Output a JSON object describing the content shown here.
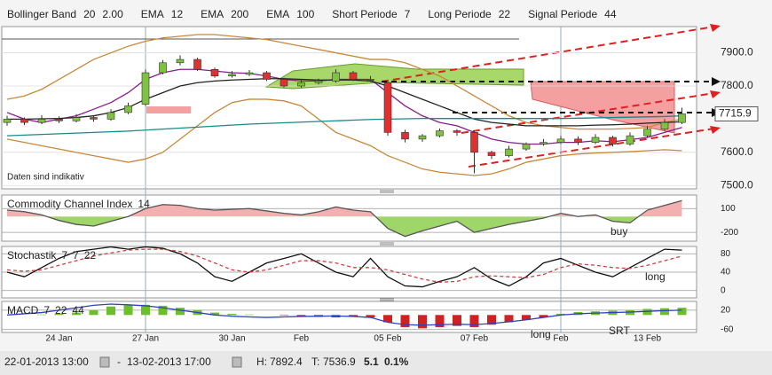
{
  "header": {
    "items": [
      {
        "name": "Bollinger Band",
        "params": [
          20,
          "2.00"
        ],
        "color": "#c86a10"
      },
      {
        "name": "EMA",
        "params": [
          12
        ],
        "color": "#8a1c8a"
      },
      {
        "name": "EMA",
        "params": [
          200
        ],
        "color": "#178a8a"
      },
      {
        "name": "EMA",
        "params": [
          100
        ],
        "color": "#a0522d"
      },
      {
        "name": "Short Periode",
        "params": [
          7
        ],
        "color": "#222222"
      },
      {
        "name": "Long Periode",
        "params": [
          22
        ],
        "color": "#222222"
      },
      {
        "name": "Signal Periode",
        "params": [
          44
        ],
        "color": "#222222"
      }
    ]
  },
  "chart_data": [
    {
      "type": "candlestick",
      "categories": [
        null,
        null,
        null,
        "24 Jan",
        null,
        null,
        null,
        null,
        "27 Jan",
        null,
        null,
        null,
        null,
        "30 Jan",
        null,
        null,
        null,
        "Feb",
        null,
        null,
        null,
        null,
        "05 Feb",
        null,
        null,
        null,
        null,
        "07 Feb",
        null,
        null,
        null,
        null,
        "Feb",
        null,
        null,
        null,
        null,
        "13 Feb",
        null,
        null
      ],
      "open": [
        7690,
        7700,
        7690,
        7700,
        7695,
        7705,
        7700,
        7720,
        7745,
        7840,
        7870,
        7880,
        7850,
        7830,
        7835,
        7840,
        7820,
        7800,
        7810,
        7815,
        7840,
        7820,
        7810,
        7660,
        7640,
        7650,
        7665,
        7660,
        7600,
        7590,
        7610,
        7625,
        7630,
        7640,
        7630,
        7645,
        7625,
        7650,
        7670,
        7690
      ],
      "high": [
        7710,
        7705,
        7712,
        7708,
        7715,
        7712,
        7730,
        7750,
        7850,
        7878,
        7892.4,
        7885,
        7855,
        7845,
        7848,
        7845,
        7825,
        7818,
        7822,
        7850,
        7845,
        7830,
        7815,
        7668,
        7655,
        7672,
        7670,
        7665,
        7605,
        7620,
        7630,
        7640,
        7650,
        7648,
        7655,
        7650,
        7660,
        7680,
        7700,
        7735
      ],
      "low": [
        7680,
        7682,
        7685,
        7688,
        7690,
        7692,
        7695,
        7715,
        7740,
        7835,
        7862,
        7845,
        7825,
        7825,
        7830,
        7815,
        7795,
        7795,
        7805,
        7810,
        7815,
        7812,
        7650,
        7630,
        7632,
        7645,
        7650,
        7536.9,
        7580,
        7585,
        7605,
        7620,
        7625,
        7622,
        7625,
        7618,
        7620,
        7645,
        7665,
        7685
      ],
      "close": [
        7700,
        7690,
        7700,
        7695,
        7705,
        7700,
        7720,
        7740,
        7840,
        7870,
        7880,
        7850,
        7830,
        7835,
        7840,
        7820,
        7800,
        7810,
        7815,
        7840,
        7820,
        7820,
        7660,
        7640,
        7650,
        7665,
        7660,
        7600,
        7590,
        7610,
        7625,
        7630,
        7640,
        7630,
        7645,
        7625,
        7650,
        7670,
        7690,
        7715.9
      ],
      "up_color": "#7fc241",
      "down_color": "#e03030",
      "series": [
        {
          "color": "#c8883a",
          "values": [
            7760,
            7770,
            7790,
            7820,
            7850,
            7880,
            7900,
            7920,
            7935,
            7945,
            7950,
            7955,
            7955,
            7950,
            7945,
            7940,
            7930,
            7920,
            7910,
            7900,
            7890,
            7880,
            7880,
            7870,
            7850,
            7830,
            7800,
            7770,
            7740,
            7710,
            7690,
            7680,
            7675,
            7670,
            7670,
            7670,
            7672,
            7675,
            7690,
            7700
          ]
        },
        {
          "color": "#c8883a",
          "values": [
            7640,
            7630,
            7620,
            7610,
            7600,
            7590,
            7580,
            7570,
            7580,
            7600,
            7640,
            7680,
            7720,
            7750,
            7760,
            7760,
            7755,
            7740,
            7700,
            7660,
            7640,
            7620,
            7590,
            7570,
            7550,
            7540,
            7535,
            7530,
            7535,
            7550,
            7570,
            7580,
            7590,
            7595,
            7598,
            7600,
            7602,
            7605,
            7608,
            7605
          ]
        },
        {
          "color": "#8a1c8a",
          "values": [
            7720,
            7700,
            7690,
            7700,
            7710,
            7730,
            7750,
            7780,
            7820,
            7840,
            7850,
            7850,
            7845,
            7840,
            7838,
            7830,
            7820,
            7815,
            7815,
            7820,
            7820,
            7820,
            7780,
            7740,
            7710,
            7690,
            7680,
            7660,
            7640,
            7630,
            7625,
            7625,
            7630,
            7630,
            7635,
            7632,
            7638,
            7645,
            7660,
            7675
          ]
        },
        {
          "color": "#222222",
          "values": [
            7700,
            7700,
            7701,
            7702,
            7705,
            7710,
            7720,
            7735,
            7760,
            7780,
            7800,
            7810,
            7815,
            7818,
            7820,
            7822,
            7822,
            7820,
            7818,
            7818,
            7818,
            7815,
            7800,
            7780,
            7760,
            7740,
            7720,
            7700,
            7690,
            7685,
            7680,
            7680,
            7680,
            7680,
            7682,
            7683,
            7685,
            7688,
            7690,
            7692
          ]
        },
        {
          "color": "#178a8a",
          "values": [
            7650,
            7652,
            7654,
            7656,
            7658,
            7660,
            7662,
            7664,
            7667,
            7670,
            7673,
            7676,
            7679,
            7682,
            7685,
            7687,
            7689,
            7691,
            7693,
            7695,
            7697,
            7699,
            7700,
            7701,
            7702,
            7702,
            7702,
            7702,
            7702,
            7702,
            7702,
            7702,
            7702,
            7703,
            7704,
            7705,
            7706,
            7707,
            7708,
            7710
          ]
        }
      ],
      "ylim": [
        7490,
        7979
      ],
      "yticks": [
        {
          "value": 7500,
          "label": "7500.0"
        },
        {
          "value": 7600,
          "label": "7600.0"
        },
        {
          "value": 7800,
          "label": "7800.0"
        },
        {
          "value": 7900,
          "label": "7900.0"
        }
      ],
      "annotations": [
        "Daten sind indikativ"
      ]
    },
    {
      "type": "line",
      "title": "Commodity Channel Index",
      "params": [
        14
      ],
      "series": [
        {
          "color": "#555555",
          "values": [
            80,
            60,
            20,
            -50,
            -100,
            -120,
            -60,
            0,
            100,
            150,
            140,
            100,
            80,
            90,
            100,
            70,
            40,
            20,
            60,
            120,
            80,
            60,
            -150,
            -250,
            -180,
            -120,
            -60,
            -200,
            -150,
            -100,
            -60,
            -20,
            40,
            0,
            20,
            -60,
            -80,
            80,
            140,
            200
          ]
        }
      ],
      "fill": true,
      "ylim": [
        -310,
        270
      ],
      "yticks": [
        -200,
        100
      ],
      "annotations": [
        "buy"
      ]
    },
    {
      "type": "line",
      "title": "Stochastik",
      "params": [
        7,
        7,
        22
      ],
      "series": [
        {
          "color": "#111111",
          "values": [
            40,
            30,
            50,
            70,
            85,
            90,
            95,
            90,
            95,
            92,
            80,
            60,
            30,
            20,
            40,
            60,
            70,
            80,
            60,
            40,
            30,
            70,
            30,
            10,
            8,
            20,
            30,
            50,
            25,
            10,
            30,
            60,
            70,
            55,
            40,
            30,
            50,
            70,
            90,
            88
          ]
        },
        {
          "color": "#d04040",
          "dash": true,
          "values": [
            45,
            42,
            45,
            55,
            65,
            75,
            82,
            88,
            90,
            90,
            85,
            75,
            60,
            45,
            40,
            45,
            55,
            65,
            65,
            60,
            50,
            50,
            45,
            35,
            25,
            18,
            20,
            30,
            32,
            30,
            28,
            35,
            50,
            58,
            55,
            50,
            48,
            55,
            65,
            75
          ]
        }
      ],
      "ylim": [
        -16,
        96
      ],
      "yticks": [
        0,
        40,
        80
      ],
      "annotations": [
        "long"
      ]
    },
    {
      "type": "macd",
      "title": "MACD",
      "params": [
        7,
        22,
        44
      ],
      "values": [
        0,
        0,
        2,
        5,
        10,
        20,
        35,
        40,
        42,
        38,
        30,
        20,
        10,
        5,
        2,
        0,
        -2,
        -5,
        -8,
        -10,
        -8,
        -10,
        -30,
        -50,
        -55,
        -50,
        -45,
        -50,
        -40,
        -30,
        -20,
        -10,
        5,
        12,
        15,
        18,
        20,
        25,
        28,
        30
      ],
      "up_color": "#6cbf2a",
      "down_color": "#d02020",
      "series": [
        {
          "color": "#3040c0",
          "values": [
            0,
            5,
            10,
            20,
            30,
            40,
            45,
            42,
            38,
            30,
            20,
            10,
            0,
            -5,
            -8,
            -10,
            -8,
            -6,
            -5,
            -4,
            -6,
            -10,
            -30,
            -40,
            -42,
            -40,
            -38,
            -40,
            -35,
            -28,
            -20,
            -10,
            0,
            5,
            8,
            10,
            12,
            15,
            18,
            20
          ]
        }
      ],
      "ylim": [
        -72,
        56
      ],
      "yticks": [
        -60,
        20
      ],
      "annotations": [
        "long",
        "SRT"
      ]
    }
  ],
  "footer": {
    "start": "22-01-2013 13:00",
    "end": "13-02-2013 17:00",
    "high_label": "H:",
    "high": 7892.4,
    "low_label": "T:",
    "low": 7536.9,
    "change": 5.1,
    "change_pct": "0.1%"
  }
}
